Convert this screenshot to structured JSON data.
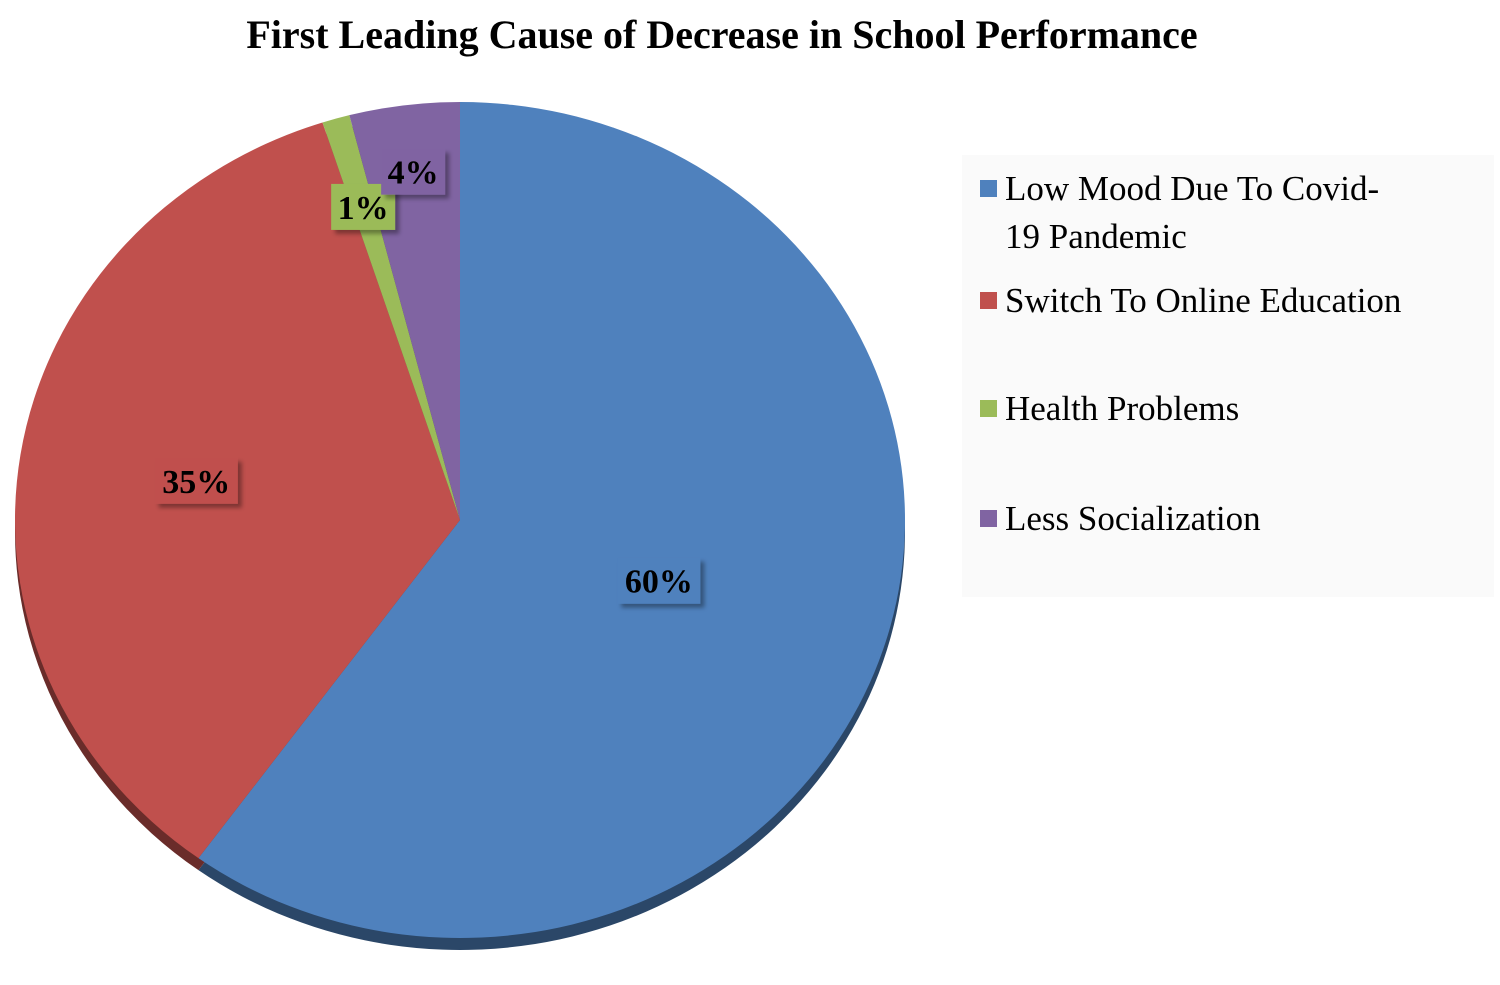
{
  "chart_data": {
    "type": "pie",
    "title": "First Leading Cause of Decrease in School Performance",
    "slices": [
      {
        "label": "Low Mood Due To Covid-19 Pandemic",
        "legend_lines": [
          "Low Mood Due To Covid-",
          "19 Pandemic"
        ],
        "value": 60,
        "display": "60%",
        "color": "#4F81BD"
      },
      {
        "label": "Switch To Online Education",
        "legend_lines": [
          "Switch To Online Education"
        ],
        "value": 35,
        "display": "35%",
        "color": "#C0504D"
      },
      {
        "label": "Health Problems",
        "legend_lines": [
          "Health Problems"
        ],
        "value": 1,
        "display": "1%",
        "color": "#9BBB59"
      },
      {
        "label": "Less Socialization",
        "legend_lines": [
          "Less Socialization"
        ],
        "value": 4,
        "display": "4%",
        "color": "#8064A2"
      }
    ],
    "start_angle_deg": 0,
    "direction": "clockwise",
    "legend_position": "right",
    "data_labels": true
  }
}
